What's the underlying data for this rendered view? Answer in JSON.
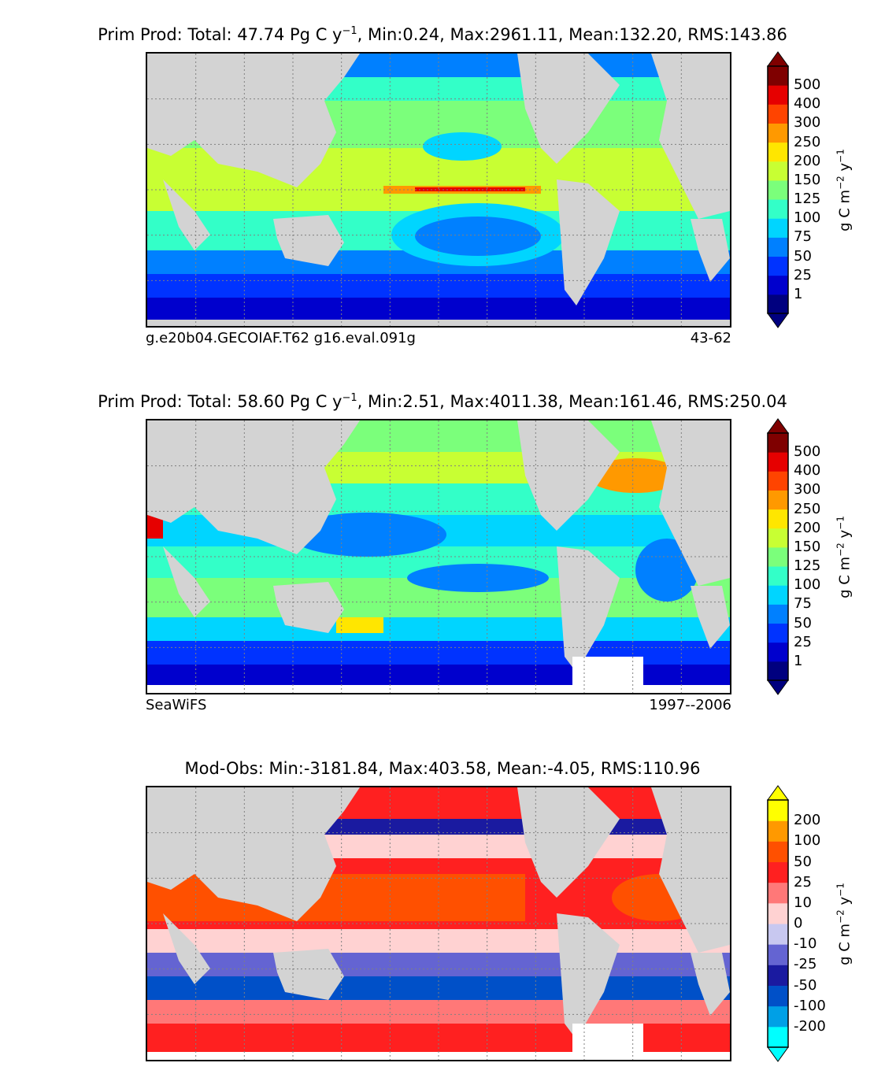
{
  "panels": [
    {
      "title_main": "Prim Prod: Total: 47.74 Pg C y",
      "title_sup": "−1",
      "title_tail": ", Min:0.24, Max:2961.11, Mean:132.20, RMS:143.86",
      "left_label": "g.e20b04.GECOIAF.T62 g16.eval.091g",
      "right_label": "43-62",
      "colorbar_ticks": [
        "1",
        "25",
        "50",
        "75",
        "100",
        "125",
        "150",
        "200",
        "250",
        "300",
        "400",
        "500"
      ],
      "colorbar_colors": [
        "#00007f",
        "#0000cd",
        "#0033ff",
        "#0080ff",
        "#00d5ff",
        "#33ffc8",
        "#7bff7b",
        "#c8ff33",
        "#ffe600",
        "#ff9900",
        "#ff4400",
        "#e60000",
        "#7f0000"
      ],
      "unit_main": "g C m",
      "unit_sup1": "−2",
      "unit_mid": " y",
      "unit_sup2": "−1"
    },
    {
      "title_main": "Prim Prod: Total: 58.60 Pg C y",
      "title_sup": "−1",
      "title_tail": ", Min:2.51, Max:4011.38, Mean:161.46, RMS:250.04",
      "left_label": "SeaWiFS",
      "right_label": "1997--2006",
      "colorbar_ticks": [
        "1",
        "25",
        "50",
        "75",
        "100",
        "125",
        "150",
        "200",
        "250",
        "300",
        "400",
        "500"
      ],
      "colorbar_colors": [
        "#00007f",
        "#0000cd",
        "#0033ff",
        "#0080ff",
        "#00d5ff",
        "#33ffc8",
        "#7bff7b",
        "#c8ff33",
        "#ffe600",
        "#ff9900",
        "#ff4400",
        "#e60000",
        "#7f0000"
      ],
      "unit_main": "g C m",
      "unit_sup1": "−2",
      "unit_mid": " y",
      "unit_sup2": "−1"
    },
    {
      "title_main": "Mod-Obs: Min:-3181.84, Max:403.58, Mean:-4.05, RMS:110.96",
      "title_sup": "",
      "title_tail": "",
      "left_label": "",
      "right_label": "",
      "colorbar_ticks": [
        "-200",
        "-100",
        "-50",
        "-25",
        "-10",
        "0",
        "10",
        "25",
        "50",
        "100",
        "200"
      ],
      "colorbar_colors": [
        "#00ffff",
        "#00a0e6",
        "#0050c8",
        "#1a1aa0",
        "#6464d2",
        "#c8c8f0",
        "#ffd2d2",
        "#ff7878",
        "#ff2020",
        "#ff5000",
        "#ff9900",
        "#ffff00"
      ],
      "unit_main": "g C m",
      "unit_sup1": "−2",
      "unit_mid": " y",
      "unit_sup2": "−1"
    }
  ],
  "colors": {
    "land": "#d3d3d3",
    "grid": "#808080"
  }
}
